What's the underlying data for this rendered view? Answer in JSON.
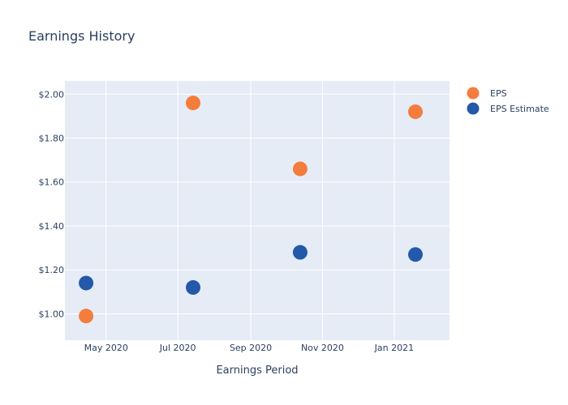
{
  "chart_data": {
    "type": "scatter",
    "title": "Earnings History",
    "xlabel": "Earnings Period",
    "ylabel": "",
    "x_ticks": [
      "May 2020",
      "Jul 2020",
      "Sep 2020",
      "Nov 2020",
      "Jan 2021"
    ],
    "x_tick_dates": [
      "2020-05-01",
      "2020-07-01",
      "2020-09-01",
      "2020-11-01",
      "2021-01-01"
    ],
    "xlim": [
      "2020-03-27",
      "2021-02-17"
    ],
    "y_ticks": [
      "$1.00",
      "$1.20",
      "$1.40",
      "$1.60",
      "$1.80",
      "$2.00"
    ],
    "y_tick_values": [
      1.0,
      1.2,
      1.4,
      1.6,
      1.8,
      2.0
    ],
    "ylim": [
      0.88,
      2.06
    ],
    "grid": true,
    "legend_position": "top-right",
    "series": [
      {
        "name": "EPS",
        "color": "#f47c3c",
        "points": [
          {
            "x": "2020-04-14",
            "y": 0.99
          },
          {
            "x": "2020-07-14",
            "y": 1.96
          },
          {
            "x": "2020-10-13",
            "y": 1.66
          },
          {
            "x": "2021-01-19",
            "y": 1.92
          }
        ]
      },
      {
        "name": "EPS Estimate",
        "color": "#2458a8",
        "points": [
          {
            "x": "2020-04-14",
            "y": 1.14
          },
          {
            "x": "2020-07-14",
            "y": 1.12
          },
          {
            "x": "2020-10-13",
            "y": 1.28
          },
          {
            "x": "2021-01-19",
            "y": 1.27
          }
        ]
      }
    ]
  }
}
